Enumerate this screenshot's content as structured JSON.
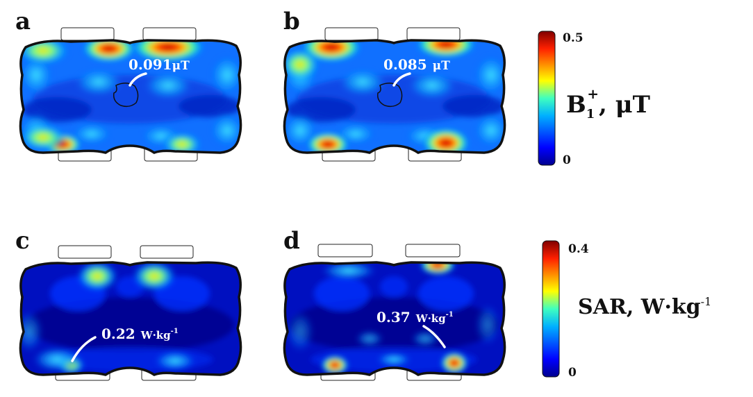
{
  "panels": [
    {
      "letter": "a",
      "annotation_value": "0.091",
      "annotation_unit": "μT"
    },
    {
      "letter": "b",
      "annotation_value": "0.085",
      "annotation_unit": "μT"
    },
    {
      "letter": "c",
      "annotation_value": "0.22",
      "annotation_unit": "W·kg",
      "annotation_sup": "-1"
    },
    {
      "letter": "d",
      "annotation_value": "0.37",
      "annotation_unit": "W·kg",
      "annotation_sup": "-1"
    }
  ],
  "colorbars": {
    "b1": {
      "max_label": "0.5",
      "min_label": "0",
      "label_main": "B",
      "label_sub": "1",
      "label_sup": "+",
      "label_unit": ", μT"
    },
    "sar": {
      "max_label": "0.4",
      "min_label": "0",
      "label_main": "SAR, W·kg",
      "label_sup": "-1"
    }
  },
  "colors": {
    "jet_low": "#00008f",
    "jet_mid": "#19c8ff",
    "jet_high": "#800000",
    "body_outline": "#111111",
    "annotation": "#ffffff"
  }
}
